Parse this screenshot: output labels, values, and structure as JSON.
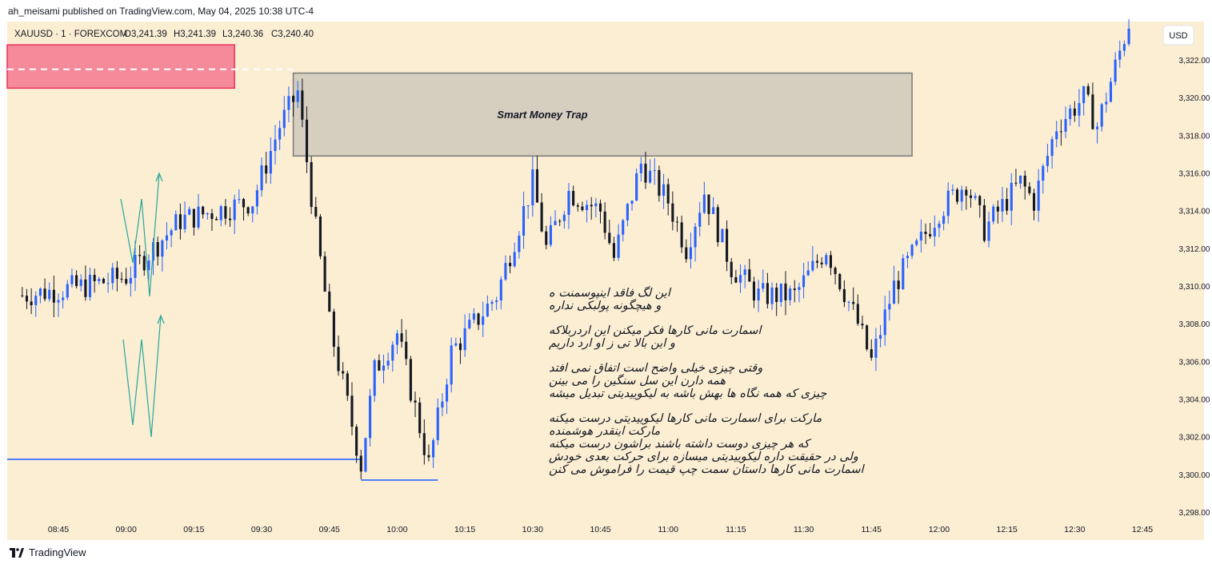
{
  "publisher_line": "ah_meisami published on TradingView.com, May 04, 2025 10:38 UTC-4",
  "footer_brand": "TradingView",
  "colors": {
    "background": "#fbeed3",
    "bull": "#2962ff",
    "bear": "#131722",
    "supply_zone": "#f48a9a",
    "trap_zone": "#d6cfc0"
  },
  "header": {
    "symbol": "XAUUSD · 1 · FOREXCOM",
    "open": "O3,241.39",
    "high": "H3,241.39",
    "low": "L3,240.36",
    "close": "C3,240.40"
  },
  "currency_button": "USD",
  "trap_label": "Smart Money Trap",
  "annotation_lines": [
    "این لگ فاقد اینپوسمنت ه",
    "و هیچگونه پولبکی نداره",
    "",
    "اسمارت مانی کارها فکر میکنن این اردربلاکه",
    "و این بالا تی ز او ارد داریم",
    "",
    "وقتی چیزی خیلی واضح است اتفاق نمی افتد",
    "همه دارن این سل سنگین را می بینن",
    "چیزی که همه نگاه ها بهش باشه به لیکوییدیتی تبدیل میشه",
    "",
    "مارکت برای اسمارت مانی کارها لیکوییدیتی درست میکنه",
    "مارکت اینقدر هوشمنده",
    "که هر چیزی دوست داشته باشند براشون درست میکنه",
    "ولی در حقیقت داره لیکوییدیتی میسازه برای حرکت بعدی خودش",
    "اسمارت مانی کارها داستان سمت چپ قیمت را فراموش می کنن"
  ],
  "chart_data": {
    "type": "candlestick",
    "symbol": "XAUUSD",
    "timeframe": "1",
    "y_range": [
      3297.0,
      3324.0
    ],
    "y_ticks": [
      "3,322.00",
      "3,320.00",
      "3,318.00",
      "3,316.00",
      "3,314.00",
      "3,312.00",
      "3,310.00",
      "3,308.00",
      "3,306.00",
      "3,304.00",
      "3,302.00",
      "3,300.00",
      "3,298.00"
    ],
    "x_ticks": [
      "08:45",
      "09:00",
      "09:15",
      "09:30",
      "09:45",
      "10:00",
      "10:15",
      "10:30",
      "10:45",
      "11:00",
      "11:15",
      "11:30",
      "11:45",
      "12:00",
      "12:15",
      "12:30",
      "12:45"
    ],
    "x_range_minutes": [
      517,
      777
    ],
    "key_points_time_price": [
      [
        "08:37",
        3309.5
      ],
      [
        "08:51",
        3310.0
      ],
      [
        "09:00",
        3310.5
      ],
      [
        "09:12",
        3313.5
      ],
      [
        "09:28",
        3314.5
      ],
      [
        "09:34",
        3318.5
      ],
      [
        "09:38",
        3320.3
      ],
      [
        "09:42",
        3313.0
      ],
      [
        "09:45",
        3308.0
      ],
      [
        "09:52",
        3300.5
      ],
      [
        "09:55",
        3305.5
      ],
      [
        "10:00",
        3307.5
      ],
      [
        "10:07",
        3300.5
      ],
      [
        "10:12",
        3306.5
      ],
      [
        "10:22",
        3309.5
      ],
      [
        "10:30",
        3315.5
      ],
      [
        "10:33",
        3312.0
      ],
      [
        "10:38",
        3315.0
      ],
      [
        "10:45",
        3314.0
      ],
      [
        "10:48",
        3311.5
      ],
      [
        "10:54",
        3316.5
      ],
      [
        "11:00",
        3314.5
      ],
      [
        "11:04",
        3312.0
      ],
      [
        "11:08",
        3315.0
      ],
      [
        "11:14",
        3311.0
      ],
      [
        "11:20",
        3309.5
      ],
      [
        "11:28",
        3309.5
      ],
      [
        "11:35",
        3312.0
      ],
      [
        "11:42",
        3308.0
      ],
      [
        "11:45",
        3306.0
      ],
      [
        "11:50",
        3310.0
      ],
      [
        "12:00",
        3314.0
      ],
      [
        "12:06",
        3315.5
      ],
      [
        "12:10",
        3313.0
      ],
      [
        "12:18",
        3315.5
      ],
      [
        "12:21",
        3314.5
      ],
      [
        "12:26",
        3318.5
      ],
      [
        "12:32",
        3320.0
      ],
      [
        "12:35",
        3318.5
      ],
      [
        "12:42",
        3324.0
      ]
    ],
    "zones": [
      {
        "kind": "supply",
        "price_top": 3322.8,
        "price_bottom": 3320.5,
        "time_end": "09:24"
      },
      {
        "kind": "smart_money_trap",
        "price_top": 3321.3,
        "price_bottom": 3316.9,
        "time_start": "09:37",
        "time_end": "11:54"
      }
    ],
    "lines": [
      {
        "kind": "horizontal",
        "price": 3321.5,
        "style": "dashed",
        "color": "#ffffff"
      },
      {
        "kind": "horizontal",
        "price": 3300.8,
        "time_end": "09:52",
        "color": "#2962ff"
      },
      {
        "kind": "horizontal",
        "price": 3299.7,
        "time_start": "09:52",
        "time_end": "10:09",
        "color": "#2962ff"
      }
    ]
  }
}
